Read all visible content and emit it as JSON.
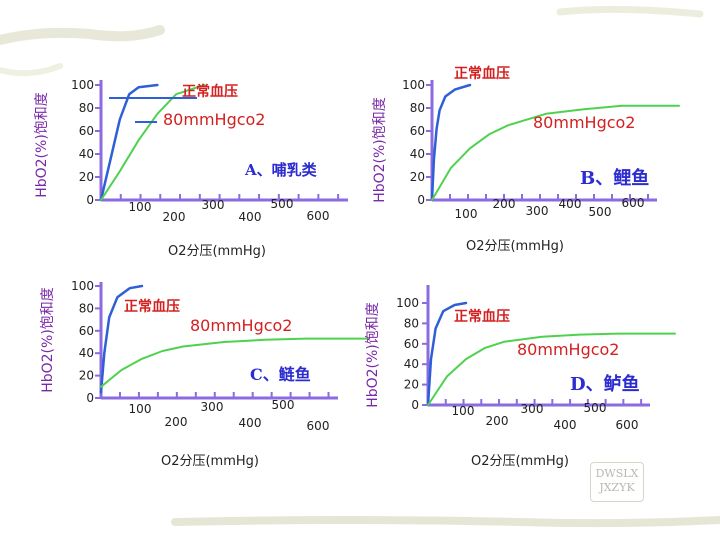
{
  "chart_data": [
    {
      "type": "line",
      "ylabel": "HbO2(%)饱和度",
      "xlabel": "O2分压(mmHg)",
      "y_ticks": [
        "100",
        "80",
        "60",
        "40",
        "20",
        "0"
      ],
      "x_ticks": [
        "100",
        "200",
        "300",
        "400",
        "500",
        "600"
      ],
      "ylim": [
        0,
        100
      ],
      "xlim": [
        0,
        650
      ],
      "panel_label": "A、哺乳类",
      "pressure_label": "正常血压",
      "co2_label": "80mmHgco2",
      "series": [
        {
          "color": "#2f5fd6",
          "x": [
            0,
            20,
            40,
            60,
            80,
            120
          ],
          "y": [
            0,
            35,
            70,
            92,
            98,
            100
          ]
        },
        {
          "color": "#4ed24e",
          "x": [
            0,
            40,
            80,
            120,
            160,
            220
          ],
          "y": [
            0,
            25,
            52,
            75,
            92,
            100
          ]
        }
      ]
    },
    {
      "type": "line",
      "ylabel": "HbO2(%)饱和度",
      "xlabel": "O2分压(mmHg)",
      "y_ticks": [
        "100",
        "80",
        "60",
        "40",
        "20",
        "0"
      ],
      "x_ticks": [
        "100",
        "200",
        "300",
        "400",
        "500",
        "600"
      ],
      "ylim": [
        0,
        100
      ],
      "xlim": [
        0,
        650
      ],
      "panel_label": "B、鲤鱼",
      "pressure_label": "正常血压",
      "co2_label": "80mmHgco2",
      "series": [
        {
          "color": "#2f5fd6",
          "x": [
            0,
            5,
            12,
            20,
            35,
            60,
            100
          ],
          "y": [
            0,
            35,
            62,
            78,
            90,
            96,
            100
          ]
        },
        {
          "color": "#4ed24e",
          "x": [
            0,
            50,
            100,
            150,
            200,
            300,
            400,
            500,
            650
          ],
          "y": [
            0,
            28,
            45,
            57,
            65,
            75,
            79,
            82,
            82
          ]
        }
      ]
    },
    {
      "type": "line",
      "ylabel": "HbO2(%)饱和度",
      "xlabel": "O2分压(mmHg)",
      "y_ticks": [
        "100",
        "80",
        "60",
        "40",
        "20",
        "0"
      ],
      "x_ticks": [
        "100",
        "200",
        "300",
        "400",
        "500",
        "600"
      ],
      "ylim": [
        0,
        100
      ],
      "xlim": [
        0,
        650
      ],
      "panel_label": "C、鲢鱼",
      "pressure_label": "正常血压",
      "co2_label": "80mmHgco2",
      "series": [
        {
          "color": "#2f5fd6",
          "x": [
            0,
            8,
            20,
            40,
            70,
            100
          ],
          "y": [
            5,
            40,
            72,
            90,
            98,
            100
          ]
        },
        {
          "color": "#4ed24e",
          "x": [
            0,
            50,
            100,
            150,
            200,
            300,
            400,
            500,
            650
          ],
          "y": [
            10,
            25,
            35,
            42,
            46,
            50,
            52,
            53,
            53
          ]
        }
      ]
    },
    {
      "type": "line",
      "ylabel": "HbO2(%)饱和度",
      "xlabel": "O2分压(mmHg)",
      "y_ticks": [
        "100",
        "80",
        "60",
        "40",
        "20",
        "0"
      ],
      "x_ticks": [
        "100",
        "200",
        "300",
        "400",
        "500",
        "600"
      ],
      "ylim": [
        0,
        100
      ],
      "xlim": [
        0,
        650
      ],
      "panel_label": "D、鲈鱼",
      "pressure_label": "正常血压",
      "co2_label": "80mmHgco2",
      "series": [
        {
          "color": "#2f5fd6",
          "x": [
            0,
            8,
            20,
            40,
            70,
            100
          ],
          "y": [
            0,
            45,
            75,
            92,
            98,
            100
          ]
        },
        {
          "color": "#4ed24e",
          "x": [
            0,
            50,
            100,
            150,
            200,
            300,
            400,
            500,
            650
          ],
          "y": [
            0,
            28,
            45,
            56,
            62,
            67,
            69,
            70,
            70
          ]
        }
      ]
    }
  ],
  "watermark": {
    "line1": "DWSLX",
    "line2": "JXZYK"
  }
}
